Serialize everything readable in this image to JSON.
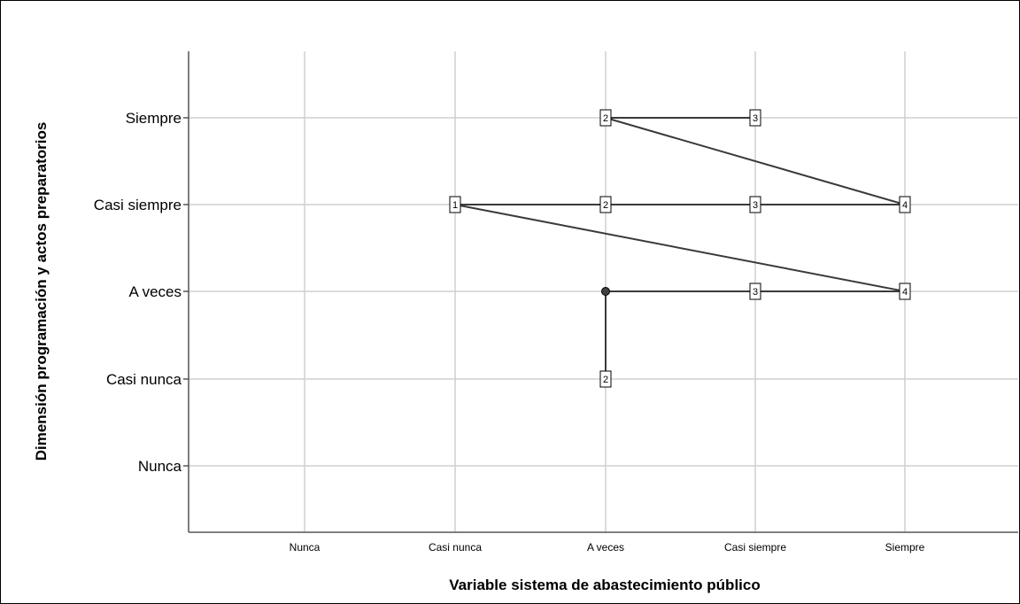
{
  "chart_data": {
    "type": "line",
    "title": "",
    "xlabel": "Variable sistema de abastecimiento público",
    "ylabel": "Dimensión programación y actos preparatorios",
    "x_categories": [
      "Nunca",
      "Casi nunca",
      "A veces",
      "Casi siempre",
      "Siempre"
    ],
    "y_categories": [
      "Nunca",
      "Casi nunca",
      "A veces",
      "Casi siempre",
      "Siempre"
    ],
    "grid": true,
    "legend": "none",
    "colors": {
      "line": "#3a3a3a",
      "grid": "#cfcfcf",
      "axis": "#555555",
      "marker_fill": "#ffffff"
    },
    "path": [
      {
        "x": "Casi nunca",
        "y": "Casi siempre",
        "label": "1",
        "marker": "box"
      },
      {
        "x": "A veces",
        "y": "Casi siempre",
        "label": "2",
        "marker": "box"
      },
      {
        "x": "Casi siempre",
        "y": "Casi siempre",
        "label": "3",
        "marker": "box"
      },
      {
        "x": "Siempre",
        "y": "Casi siempre",
        "label": "4",
        "marker": "box"
      },
      {
        "x": "A veces",
        "y": "Siempre",
        "label": "2",
        "marker": "box"
      },
      {
        "x": "Casi siempre",
        "y": "Siempre",
        "label": "3",
        "marker": "box"
      }
    ],
    "path2": [
      {
        "x": "A veces",
        "y": "Casi nunca",
        "label": "2",
        "marker": "box"
      },
      {
        "x": "A veces",
        "y": "A veces",
        "label": "",
        "marker": "dot"
      },
      {
        "x": "Casi siempre",
        "y": "A veces",
        "label": "3",
        "marker": "box"
      },
      {
        "x": "Siempre",
        "y": "A veces",
        "label": "4",
        "marker": "box"
      },
      {
        "x": "Casi nunca",
        "y": "Casi siempre",
        "label": "1",
        "marker": "box"
      }
    ]
  }
}
